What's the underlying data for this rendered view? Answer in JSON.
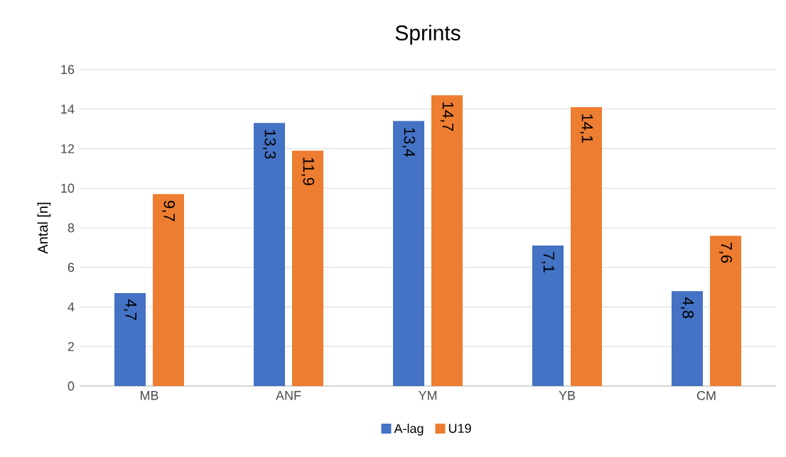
{
  "chart_data": {
    "type": "bar",
    "title": "Sprints",
    "ylabel": "Antal [n]",
    "categories": [
      "MB",
      "ANF",
      "YM",
      "YB",
      "CM"
    ],
    "series": [
      {
        "name": "A-lag",
        "color": "#4472c4",
        "values": [
          4.7,
          13.3,
          13.4,
          7.1,
          4.8
        ],
        "value_labels": [
          "4,7",
          "13,3",
          "13,4",
          "7,1",
          "4,8"
        ]
      },
      {
        "name": "U19",
        "color": "#ed7d31",
        "values": [
          9.7,
          11.9,
          14.7,
          14.1,
          7.6
        ],
        "value_labels": [
          "9,7",
          "11,9",
          "14,7",
          "14,1",
          "7,6"
        ]
      }
    ],
    "ylim": [
      0,
      16
    ],
    "yticks": [
      0,
      2,
      4,
      6,
      8,
      10,
      12,
      14,
      16
    ],
    "grid": "y",
    "legend": "bottom"
  }
}
